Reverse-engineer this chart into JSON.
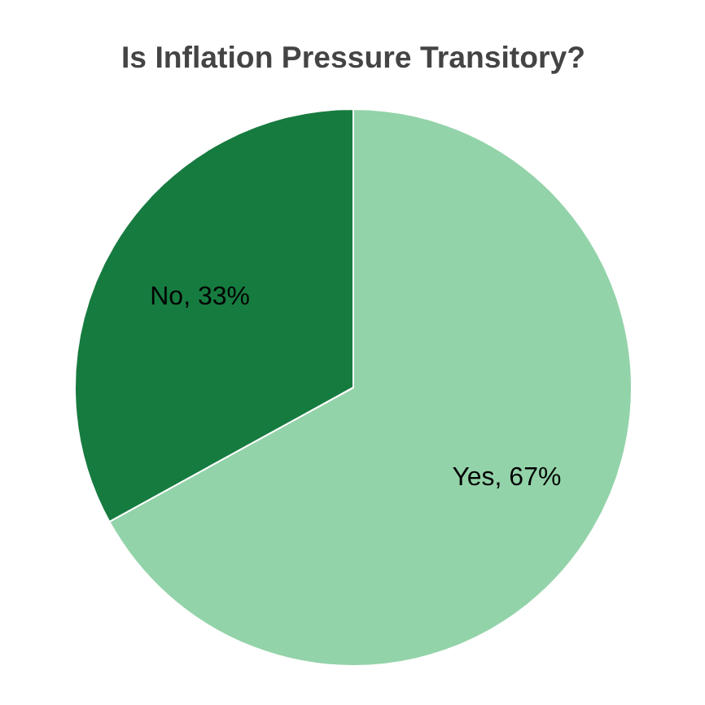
{
  "chart_data": {
    "type": "pie",
    "title": "Is Inflation Pressure Transitory?",
    "categories": [
      "Yes",
      "No"
    ],
    "values": [
      67,
      33
    ],
    "colors": [
      "#93d3a9",
      "#167b3f"
    ],
    "value_labels": [
      "67%",
      "33%"
    ]
  }
}
